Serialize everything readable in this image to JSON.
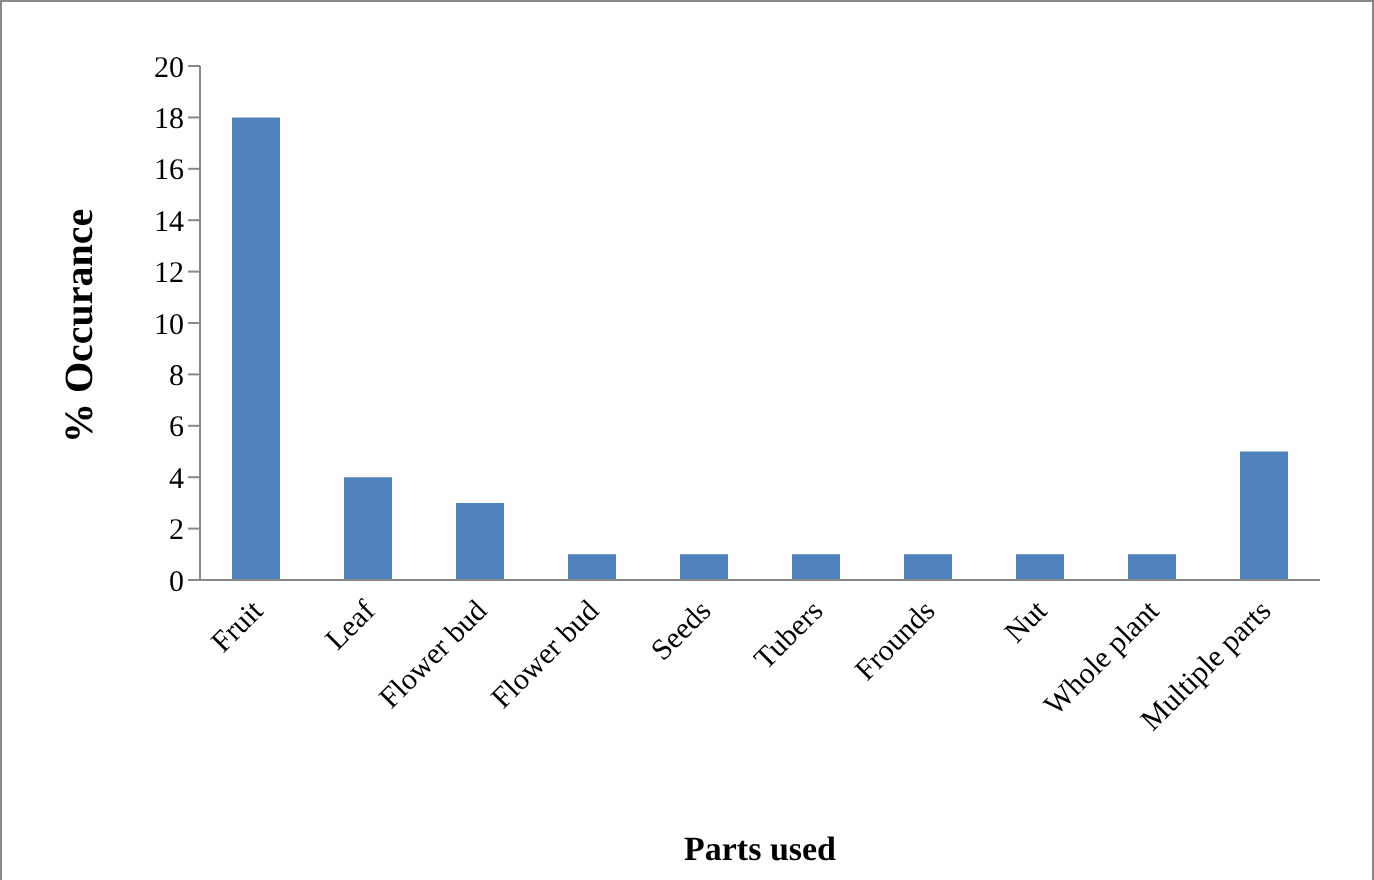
{
  "chart_data": {
    "type": "bar",
    "xlabel": "Parts used",
    "ylabel": "% Occurance",
    "categories": [
      "Fruit",
      "Leaf",
      "Flower bud",
      "Flower bud",
      "Seeds",
      "Tubers",
      "Frounds",
      "Nut",
      "Whole plant",
      "Multiple parts"
    ],
    "values": [
      18,
      4,
      3,
      1,
      1,
      1,
      1,
      1,
      1,
      5
    ],
    "color": "#4f81bd",
    "ylim": [
      0,
      20
    ],
    "yticks": [
      0,
      2,
      4,
      6,
      8,
      10,
      12,
      14,
      16,
      18,
      20
    ],
    "grid": false,
    "legend": false
  }
}
